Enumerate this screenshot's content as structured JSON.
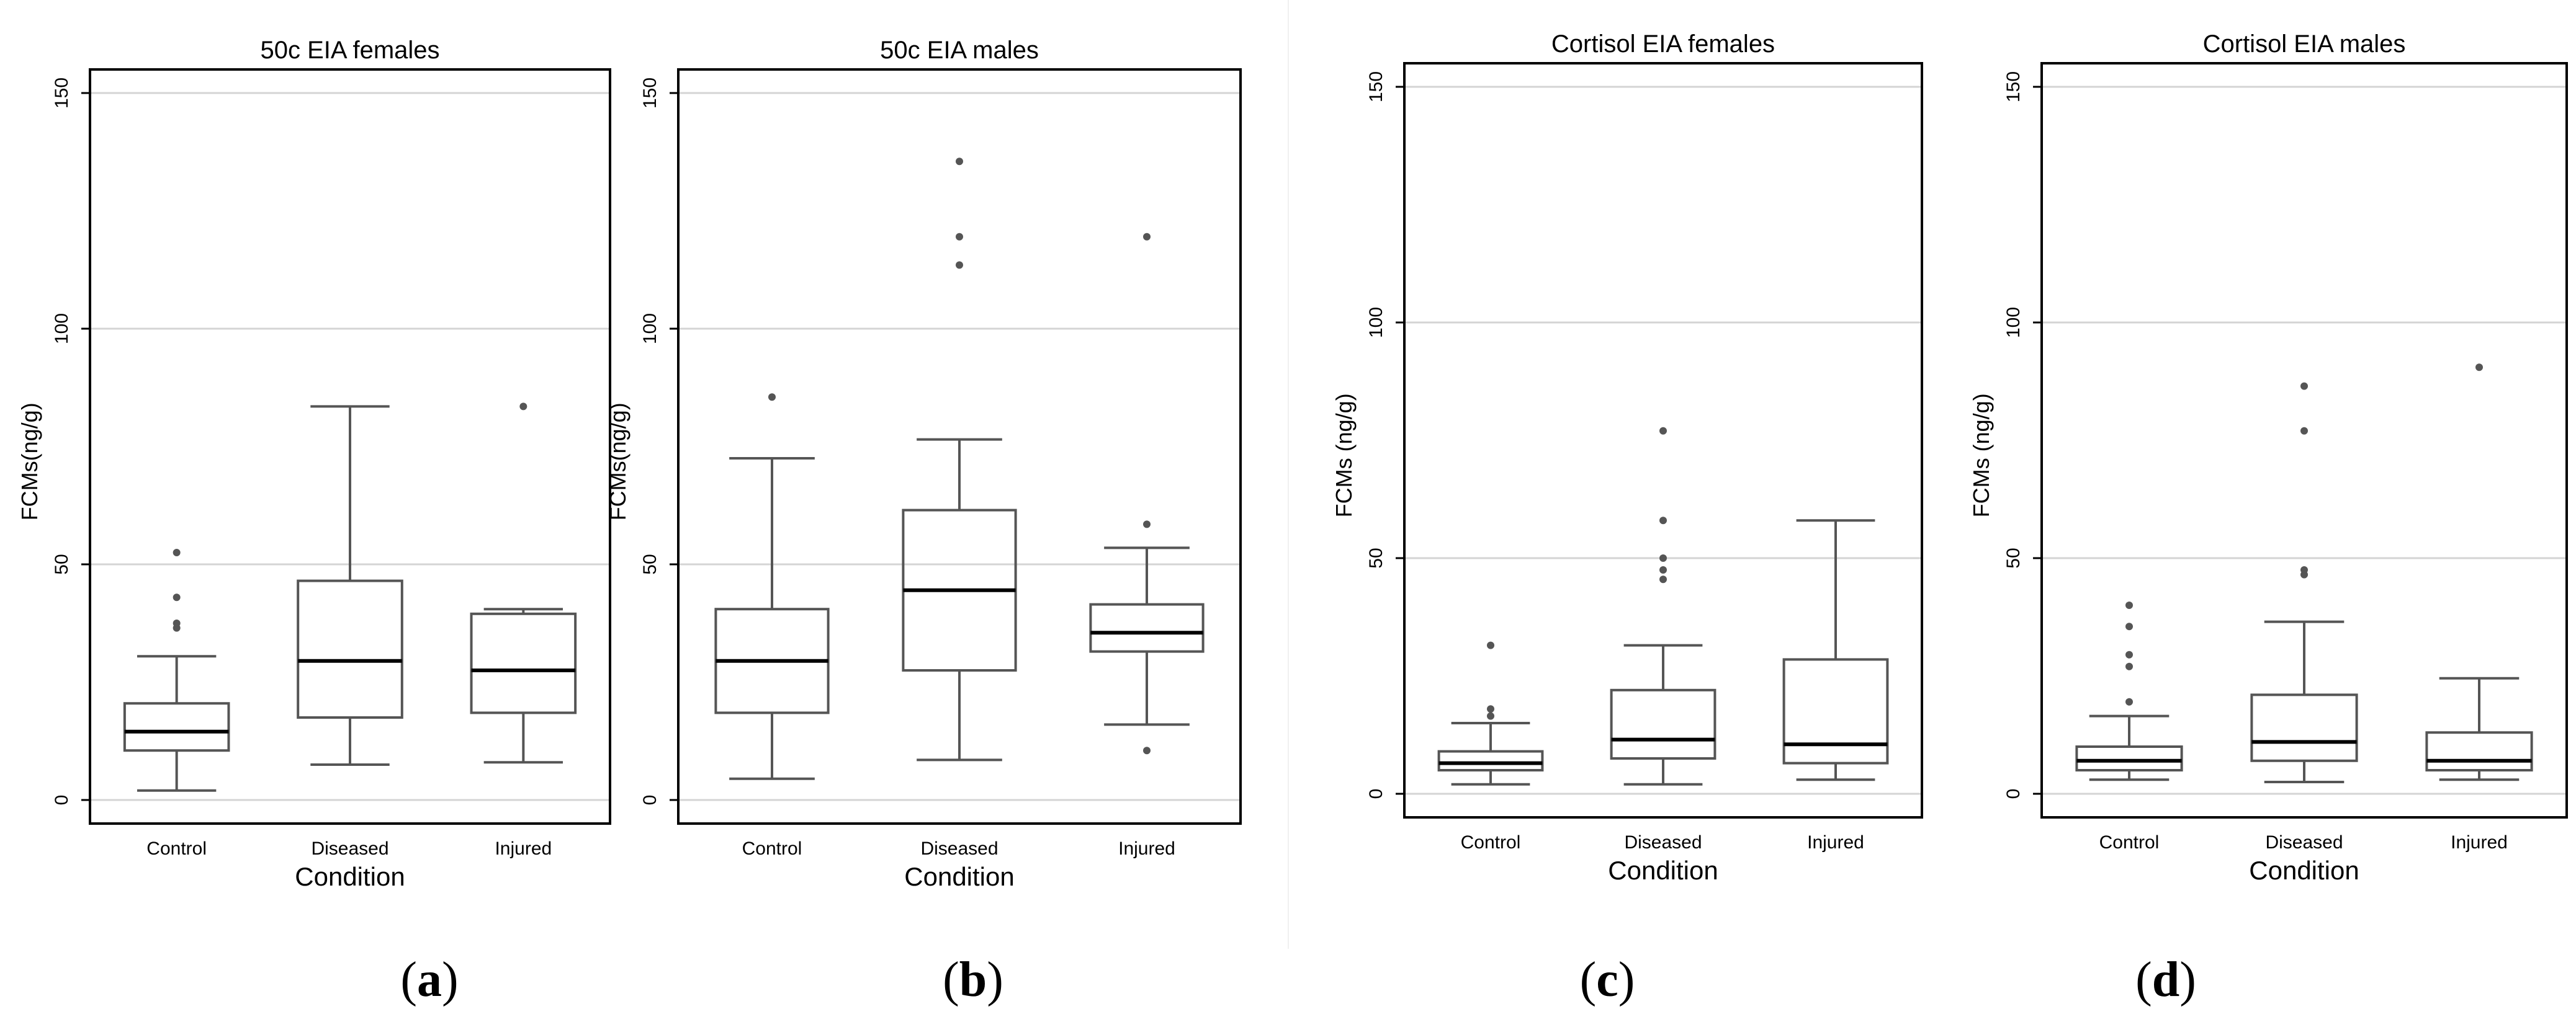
{
  "figure": {
    "colors": {
      "box": "#555555",
      "median": "#000000",
      "grid": "#d4d4d4",
      "frame": "#000000",
      "outlier": "#555555"
    },
    "panels": [
      {
        "label": "a"
      },
      {
        "label": "b"
      },
      {
        "label": "c"
      },
      {
        "label": "d"
      }
    ]
  },
  "chart_data": [
    {
      "type": "box",
      "title": "50c EIA females",
      "xlabel": "Condition",
      "ylabel": "FCMs(ng/g)",
      "ylim": [
        -5,
        155
      ],
      "yticks": [
        0,
        50,
        100,
        150
      ],
      "categories": [
        "Control",
        "Diseased",
        "Injured"
      ],
      "boxes": [
        {
          "min": 2,
          "q1": 10.5,
          "median": 14.5,
          "q3": 20.5,
          "max": 30.5,
          "outliers": [
            36.5,
            37.5,
            43,
            52.5
          ]
        },
        {
          "min": 7.5,
          "q1": 17.5,
          "median": 29.5,
          "q3": 46.5,
          "max": 83.5,
          "outliers": []
        },
        {
          "min": 8,
          "q1": 18.5,
          "median": 27.5,
          "q3": 39.5,
          "max": 40.5,
          "outliers": [
            83.5
          ]
        }
      ]
    },
    {
      "type": "box",
      "title": "50c EIA males",
      "xlabel": "Condition",
      "ylabel": "FCMs(ng/g)",
      "ylim": [
        -5,
        155
      ],
      "yticks": [
        0,
        50,
        100,
        150
      ],
      "categories": [
        "Control",
        "Diseased",
        "Injured"
      ],
      "boxes": [
        {
          "min": 4.5,
          "q1": 18.5,
          "median": 29.5,
          "q3": 40.5,
          "max": 72.5,
          "outliers": [
            85.5
          ]
        },
        {
          "min": 8.5,
          "q1": 27.5,
          "median": 44.5,
          "q3": 61.5,
          "max": 76.5,
          "outliers": [
            113.5,
            119.5,
            135.5
          ]
        },
        {
          "min": 16,
          "q1": 31.5,
          "median": 35.5,
          "q3": 41.5,
          "max": 53.5,
          "outliers": [
            10.5,
            58.5,
            119.5
          ]
        }
      ]
    },
    {
      "type": "box",
      "title": "Cortisol EIA females",
      "xlabel": "Condition",
      "ylabel": "FCMs (ng/g)",
      "ylim": [
        -5,
        155
      ],
      "yticks": [
        0,
        50,
        100,
        150
      ],
      "categories": [
        "Control",
        "Diseased",
        "Injured"
      ],
      "boxes": [
        {
          "min": 2,
          "q1": 5,
          "median": 6.5,
          "q3": 9,
          "max": 15,
          "outliers": [
            16.5,
            18,
            31.5
          ]
        },
        {
          "min": 2,
          "q1": 7.5,
          "median": 11.5,
          "q3": 22,
          "max": 31.5,
          "outliers": [
            45.5,
            47.5,
            50,
            58,
            77
          ]
        },
        {
          "min": 3,
          "q1": 6.5,
          "median": 10.5,
          "q3": 28.5,
          "max": 58,
          "outliers": []
        }
      ]
    },
    {
      "type": "box",
      "title": "Cortisol EIA males",
      "xlabel": "Condition",
      "ylabel": "FCMs (ng/g)",
      "ylim": [
        -5,
        155
      ],
      "yticks": [
        0,
        50,
        100,
        150
      ],
      "categories": [
        "Control",
        "Diseased",
        "Injured"
      ],
      "boxes": [
        {
          "min": 3,
          "q1": 5,
          "median": 7,
          "q3": 10,
          "max": 16.5,
          "outliers": [
            19.5,
            27,
            29.5,
            35.5,
            40
          ]
        },
        {
          "min": 2.5,
          "q1": 7,
          "median": 11,
          "q3": 21,
          "max": 36.5,
          "outliers": [
            46.5,
            47.5,
            77,
            86.5
          ]
        },
        {
          "min": 3,
          "q1": 5,
          "median": 7,
          "q3": 13,
          "max": 24.5,
          "outliers": [
            90.5
          ]
        }
      ]
    }
  ]
}
